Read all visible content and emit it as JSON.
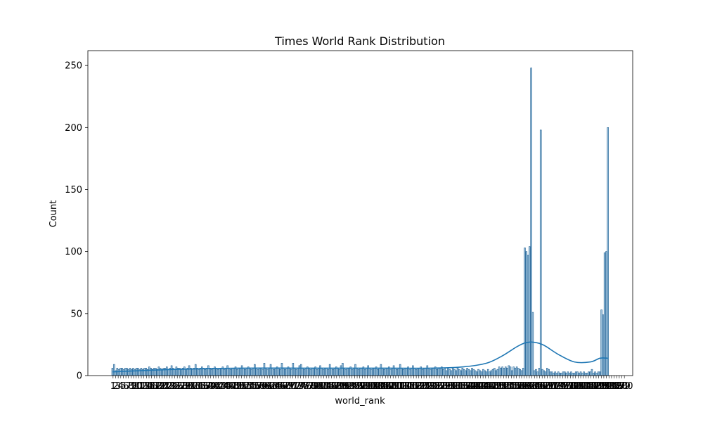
{
  "chart_data": {
    "type": "bar",
    "title": "Times World Rank Distribution",
    "xlabel": "world_rank",
    "ylabel": "Count",
    "ylim": [
      0,
      262
    ],
    "yticks": [
      0,
      50,
      100,
      150,
      200,
      250
    ],
    "grid": false,
    "legend": "none",
    "colors": {
      "bar_fill": "#9fc3dc",
      "bar_edge": "#1f5f93",
      "kde": "#1f77b4"
    },
    "segments": [
      {
        "from": 1,
        "to": 225,
        "values": [
          6,
          9,
          4,
          6,
          5,
          6,
          6,
          5,
          6,
          6,
          5,
          6,
          5,
          6,
          5,
          6,
          6,
          5,
          6,
          5,
          6,
          6,
          5,
          7,
          6,
          5,
          6,
          6,
          5,
          7,
          6,
          5,
          6,
          6,
          7,
          5,
          6,
          8,
          6,
          5,
          7,
          6,
          6,
          5,
          6,
          7,
          5,
          6,
          8,
          6,
          5,
          6,
          9,
          6,
          5,
          6,
          7,
          6,
          5,
          6,
          8,
          6,
          5,
          6,
          7,
          6,
          5,
          6,
          6,
          7,
          5,
          6,
          8,
          6,
          5,
          6,
          6,
          7,
          5,
          6,
          6,
          8,
          6,
          5,
          6,
          7,
          6,
          5,
          6,
          9,
          6,
          5,
          6,
          6,
          5,
          10,
          6,
          5,
          6,
          9,
          6,
          5,
          6,
          7,
          6,
          5,
          10,
          6,
          5,
          6,
          7,
          6,
          5,
          10,
          6,
          5,
          6,
          8,
          9,
          6,
          5,
          6,
          7,
          6,
          5,
          6,
          6,
          7,
          5,
          6,
          8,
          6,
          5,
          6,
          6,
          5,
          9,
          6,
          5,
          6,
          7,
          6,
          5,
          8,
          10,
          6,
          5,
          6,
          6,
          7,
          5,
          6,
          9,
          6,
          5,
          6,
          6,
          7,
          5,
          6,
          8,
          6,
          5,
          6,
          6,
          7,
          5,
          6,
          9,
          6,
          5,
          6,
          6,
          7,
          5,
          6,
          8,
          6,
          5,
          6,
          9,
          6,
          5,
          6,
          6,
          7,
          5,
          6,
          8,
          6,
          5,
          6,
          6,
          7,
          5,
          6,
          6,
          8,
          6,
          5,
          6,
          6,
          7,
          5,
          6,
          6,
          7,
          5,
          6,
          4,
          6,
          5,
          4,
          6,
          5,
          4,
          6,
          5,
          4,
          6,
          5,
          4,
          6,
          5,
          4
        ]
      },
      {
        "from": 226,
        "to": 240,
        "values": [
          6,
          5,
          4,
          3,
          5,
          4,
          3,
          5,
          4,
          3,
          5,
          3,
          4,
          5,
          6
        ]
      },
      {
        "from": 241,
        "to": 250,
        "values": [
          4,
          5,
          7,
          6,
          7,
          6,
          7,
          6,
          8,
          7
        ]
      },
      {
        "from": 251,
        "to": 258,
        "values": [
          4,
          7,
          6,
          7,
          6,
          5,
          4,
          6
        ]
      },
      {
        "from": 259,
        "to": 268,
        "values": [
          103,
          100,
          97,
          104,
          248,
          51,
          4,
          5,
          3,
          6
        ]
      },
      {
        "from": 269,
        "to": 275,
        "values": [
          198,
          5,
          4,
          3,
          6,
          5,
          3
        ]
      },
      {
        "from": 276,
        "to": 302,
        "values": [
          3,
          2,
          3,
          2,
          3,
          2,
          2,
          3,
          3,
          2,
          3,
          2,
          3,
          2,
          2,
          3,
          3,
          2,
          3,
          2,
          3,
          2,
          2,
          3,
          3,
          5,
          2
        ]
      },
      {
        "from": 303,
        "to": 311,
        "values": [
          3,
          2,
          3,
          3,
          53,
          49,
          99,
          100,
          200
        ]
      }
    ],
    "kde": {
      "x": [
        1,
        40,
        80,
        120,
        160,
        200,
        220,
        235,
        245,
        255,
        262,
        270,
        280,
        290,
        300,
        306,
        311
      ],
      "y": [
        3,
        5,
        6,
        6,
        6,
        6,
        7,
        10,
        16,
        24,
        27,
        25,
        17,
        11,
        11,
        14,
        14
      ]
    },
    "xticklabels": [
      "1",
      "2",
      "3",
      "4",
      "5",
      "6",
      "7",
      "8",
      "9",
      "10",
      "11",
      "12",
      "13",
      "14",
      "15",
      "16",
      "17",
      "18",
      "19",
      "20",
      "21",
      "22",
      "23",
      "24",
      "25",
      "26",
      "27",
      "28",
      "29",
      "30",
      "31",
      "32",
      "33",
      "34",
      "35",
      "36",
      "37",
      "38",
      "39",
      "40",
      "41",
      "42",
      "43",
      "44",
      "45",
      "46",
      "47",
      "48",
      "49",
      "50",
      "51",
      "52",
      "53",
      "54",
      "55",
      "56",
      "57",
      "58",
      "59",
      "60",
      "61",
      "62",
      "63",
      "64",
      "65",
      "66",
      "67",
      "68",
      "69",
      "70",
      "71",
      "72",
      "73",
      "74",
      "75",
      "76",
      "77",
      "78",
      "79",
      "80",
      "81",
      "82",
      "83",
      "84",
      "85",
      "86",
      "87",
      "88",
      "89",
      "90",
      "91",
      "92",
      "93",
      "94",
      "95",
      "96",
      "97",
      "98",
      "99",
      "100",
      "101",
      "102",
      "103",
      "104",
      "105",
      "106",
      "107",
      "108",
      "109",
      "110",
      "111",
      "112",
      "113",
      "114",
      "115",
      "116",
      "117",
      "118",
      "119",
      "120",
      "121",
      "122",
      "123",
      "124",
      "125",
      "126",
      "127",
      "128",
      "129",
      "130",
      "131",
      "132",
      "133",
      "134",
      "135",
      "136",
      "137",
      "138",
      "139",
      "140",
      "141",
      "142",
      "143",
      "144",
      "145",
      "146",
      "147",
      "148",
      "149",
      "150",
      "151",
      "152",
      "153",
      "154",
      "155",
      "156",
      "157",
      "158",
      "159",
      "160",
      "161",
      "162",
      "163",
      "164",
      "165",
      "166",
      "167",
      "168",
      "169",
      "170",
      "171",
      "172",
      "173",
      "174",
      "175",
      "176",
      "177",
      "178",
      "179",
      "180",
      "181",
      "182",
      "183",
      "184",
      "185",
      "186",
      "187",
      "188",
      "189",
      "190",
      "191",
      "192",
      "193",
      "194",
      "195",
      "196",
      "197",
      "198",
      "199",
      "200"
    ]
  }
}
